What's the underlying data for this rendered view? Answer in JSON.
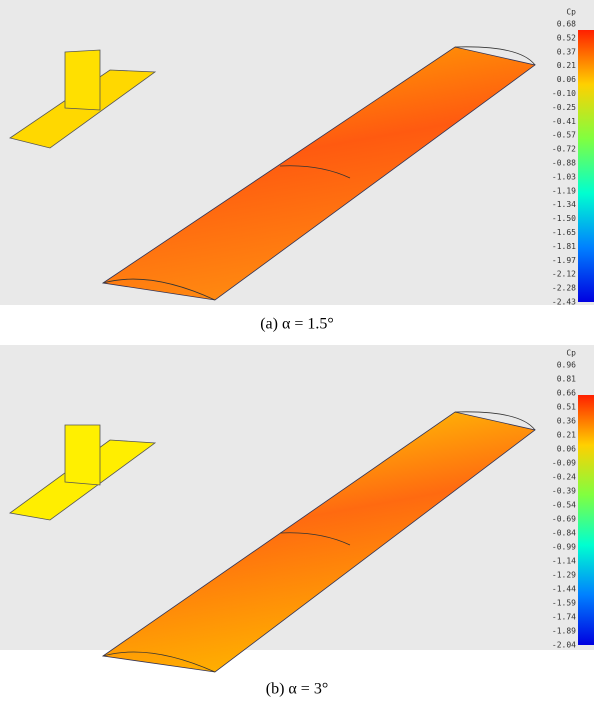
{
  "panels": [
    {
      "colorbar": {
        "title": "Cp",
        "labels": [
          "0.68",
          "0.52",
          "0.37",
          "0.21",
          "0.06",
          "-0.10",
          "-0.25",
          "-0.41",
          "-0.57",
          "-0.72",
          "-0.88",
          "-1.03",
          "-1.19",
          "-1.34",
          "-1.50",
          "-1.65",
          "-1.81",
          "-1.97",
          "-2.12",
          "-2.28",
          "-2.43"
        ]
      },
      "caption": "(a) α = 1.5°"
    },
    {
      "colorbar": {
        "title": "Cp",
        "labels": [
          "0.96",
          "0.81",
          "0.66",
          "0.51",
          "0.36",
          "0.21",
          "0.06",
          "-0.09",
          "-0.24",
          "-0.39",
          "-0.54",
          "-0.69",
          "-0.84",
          "-0.99",
          "-1.14",
          "-1.29",
          "-1.44",
          "-1.59",
          "-1.74",
          "-1.89",
          "-2.04"
        ]
      },
      "caption": "(b) α = 3°"
    }
  ]
}
